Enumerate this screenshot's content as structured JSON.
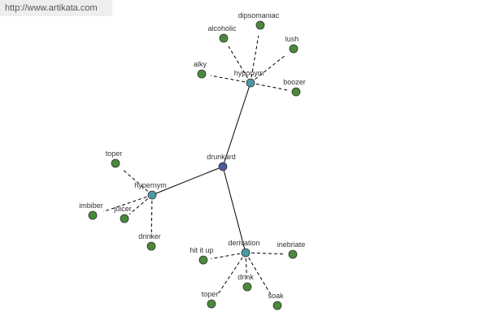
{
  "header": {
    "url": "http://www.artikata.com"
  },
  "nodes": [
    {
      "label": "drunkard"
    },
    {
      "label": "hyponym"
    },
    {
      "label": "hypernym"
    },
    {
      "label": "derivation"
    },
    {
      "label": "dipsomaniac"
    },
    {
      "label": "alcoholic"
    },
    {
      "label": "lush"
    },
    {
      "label": "alky"
    },
    {
      "label": "boozer"
    },
    {
      "label": "toper"
    },
    {
      "label": "imbiber"
    },
    {
      "label": "juicer"
    },
    {
      "label": "drinker"
    },
    {
      "label": "hit it up"
    },
    {
      "label": "inebriate"
    },
    {
      "label": "toper"
    },
    {
      "label": "drink"
    },
    {
      "label": "soak"
    }
  ]
}
